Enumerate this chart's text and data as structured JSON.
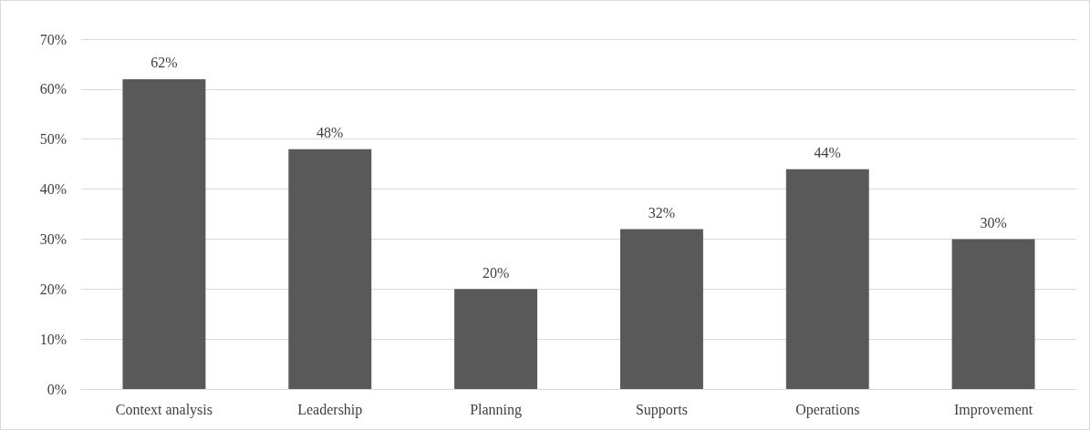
{
  "chart_data": {
    "type": "bar",
    "categories": [
      "Context analysis",
      "Leadership",
      "Planning",
      "Supports",
      "Operations",
      "Improvement"
    ],
    "values": [
      62,
      48,
      20,
      32,
      44,
      30
    ],
    "value_labels": [
      "62%",
      "48%",
      "20%",
      "32%",
      "44%",
      "30%"
    ],
    "color": "#595959",
    "ylim": [
      0,
      70
    ],
    "yticks": [
      {
        "value": 0,
        "label": "0%"
      },
      {
        "value": 10,
        "label": "10%"
      },
      {
        "value": 20,
        "label": "20%"
      },
      {
        "value": 30,
        "label": "30%"
      },
      {
        "value": 40,
        "label": "40%"
      },
      {
        "value": 50,
        "label": "50%"
      },
      {
        "value": 60,
        "label": "60%"
      },
      {
        "value": 70,
        "label": "70%"
      }
    ],
    "grid": "y"
  }
}
